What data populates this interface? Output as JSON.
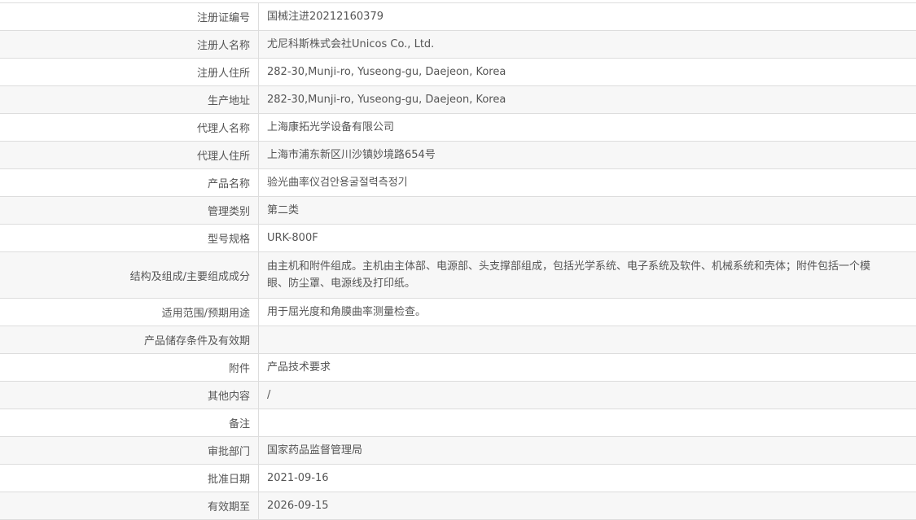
{
  "rows": [
    {
      "label": "注册证编号",
      "value": "国械注进20212160379"
    },
    {
      "label": "注册人名称",
      "value": "尤尼科斯株式会社Unicos Co., Ltd."
    },
    {
      "label": "注册人住所",
      "value": "282-30,Munji-ro, Yuseong-gu, Daejeon, Korea"
    },
    {
      "label": "生产地址",
      "value": "282-30,Munji-ro, Yuseong-gu, Daejeon, Korea"
    },
    {
      "label": "代理人名称",
      "value": "上海康拓光学设备有限公司"
    },
    {
      "label": "代理人住所",
      "value": "上海市浦东新区川沙镇妙境路654号"
    },
    {
      "label": "产品名称",
      "value": "验光曲率仪검안용굴절력측정기"
    },
    {
      "label": "管理类别",
      "value": "第二类"
    },
    {
      "label": "型号规格",
      "value": "URK-800F"
    },
    {
      "label": "结构及组成/主要组成成分",
      "value": "由主机和附件组成。主机由主体部、电源部、头支撑部组成，包括光学系统、电子系统及软件、机械系统和壳体；附件包括一个模",
      "value2": "眼、防尘罩、电源线及打印纸。"
    },
    {
      "label": "适用范围/预期用途",
      "value": "用于屈光度和角膜曲率测量检查。"
    },
    {
      "label": "产品储存条件及有效期",
      "value": ""
    },
    {
      "label": "附件",
      "value": "产品技术要求"
    },
    {
      "label": "其他内容",
      "value": "/"
    },
    {
      "label": "备注",
      "value": ""
    },
    {
      "label": "审批部门",
      "value": "国家药品监督管理局"
    },
    {
      "label": "批准日期",
      "value": "2021-09-16"
    },
    {
      "label": "有效期至",
      "value": "2026-09-15"
    }
  ]
}
